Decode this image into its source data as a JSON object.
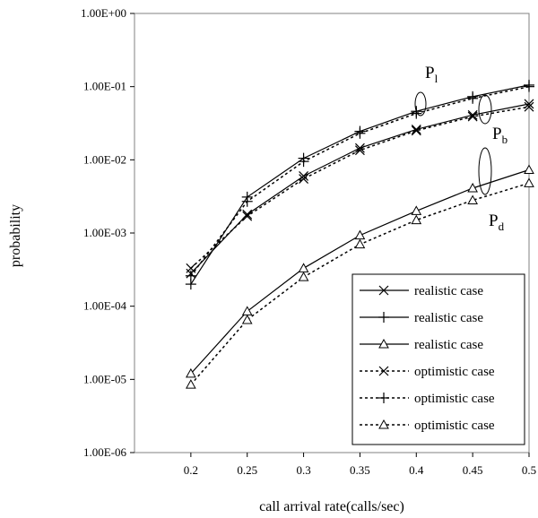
{
  "chart_data": {
    "type": "line",
    "title": "",
    "xlabel": "call arrival rate(calls/sec)",
    "ylabel": "probability",
    "y_scale": "log",
    "xlim": [
      0.15,
      0.5
    ],
    "ylim": [
      1e-06,
      1
    ],
    "grid": false,
    "legend_position": "bottom-right",
    "x_ticks": [
      "0.2",
      "0.25",
      "0.3",
      "0.35",
      "0.4",
      "0.45",
      "0.5"
    ],
    "y_ticks": [
      "1.00E+00",
      "1.00E-01",
      "1.00E-02",
      "1.00E-03",
      "1.00E-04",
      "1.00E-05",
      "1.00E-06"
    ],
    "x": [
      0.2,
      0.25,
      0.3,
      0.35,
      0.4,
      0.45,
      0.5
    ],
    "series": [
      {
        "name": "realistic case",
        "marker": "x",
        "line": "solid",
        "values": [
          0.00028,
          0.0018,
          0.006,
          0.0145,
          0.026,
          0.041,
          0.058
        ]
      },
      {
        "name": "realistic case",
        "marker": "plus",
        "line": "solid",
        "values": [
          0.0002,
          0.0031,
          0.0105,
          0.0245,
          0.046,
          0.073,
          0.105
        ]
      },
      {
        "name": "realistic case",
        "marker": "triangle",
        "line": "solid",
        "values": [
          1.2e-05,
          8.5e-05,
          0.00033,
          0.00093,
          0.002,
          0.0041,
          0.0073
        ]
      },
      {
        "name": "optimistic case",
        "marker": "x",
        "line": "dotted",
        "values": [
          0.00033,
          0.0017,
          0.0055,
          0.0135,
          0.025,
          0.039,
          0.053
        ]
      },
      {
        "name": "optimistic case",
        "marker": "plus",
        "line": "dotted",
        "values": [
          0.00026,
          0.0027,
          0.0095,
          0.023,
          0.043,
          0.069,
          0.1
        ]
      },
      {
        "name": "optimistic case",
        "marker": "triangle",
        "line": "dotted",
        "values": [
          8.5e-06,
          6.5e-05,
          0.00025,
          0.0007,
          0.0015,
          0.0028,
          0.0048
        ]
      }
    ],
    "annotations": [
      {
        "main": "P",
        "sub": "l"
      },
      {
        "main": "P",
        "sub": "b"
      },
      {
        "main": "P",
        "sub": "d"
      }
    ]
  }
}
